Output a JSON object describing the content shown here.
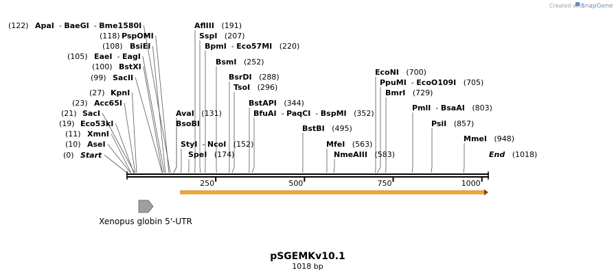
{
  "credit": {
    "prefix": "Created with",
    "brand": "SnapGene"
  },
  "plasmid": {
    "name": "pSGEMKv10.1",
    "length_label": "1018 bp",
    "length": 1018
  },
  "axis": {
    "ticks": [
      250,
      500,
      750,
      1000
    ]
  },
  "feature": {
    "name": "Xenopus globin 5'-UTR",
    "start": 1,
    "end": 42
  },
  "orf": {
    "start": 150,
    "end": 1018,
    "color": "#f0a830"
  },
  "sites": [
    {
      "id": "start",
      "names": [
        "Start"
      ],
      "pos": "(0)",
      "bp": 0,
      "italic": true,
      "pos_first": true
    },
    {
      "id": "asei",
      "names": [
        "AseI"
      ],
      "pos": "(10)",
      "bp": 10,
      "pos_first": true
    },
    {
      "id": "xmni",
      "names": [
        "XmnI"
      ],
      "pos": "(11)",
      "bp": 11,
      "pos_first": true
    },
    {
      "id": "eco53ki",
      "names": [
        "Eco53kI"
      ],
      "pos": "(19)",
      "bp": 19,
      "pos_first": true
    },
    {
      "id": "saci",
      "names": [
        "SacI"
      ],
      "pos": "(21)",
      "bp": 21,
      "pos_first": true
    },
    {
      "id": "acc65i",
      "names": [
        "Acc65I"
      ],
      "pos": "(23)",
      "bp": 23,
      "pos_first": true
    },
    {
      "id": "kpni",
      "names": [
        "KpnI"
      ],
      "pos": "(27)",
      "bp": 27,
      "pos_first": true
    },
    {
      "id": "sacii",
      "names": [
        "SacII"
      ],
      "pos": "(99)",
      "bp": 99,
      "pos_first": true
    },
    {
      "id": "bstxi",
      "names": [
        "BstXI"
      ],
      "pos": "(100)",
      "bp": 100,
      "pos_first": true
    },
    {
      "id": "eaei",
      "names": [
        "EaeI",
        "EagI"
      ],
      "pos": "(105)",
      "bp": 105,
      "pos_first": true
    },
    {
      "id": "bsiei",
      "names": [
        "BsiEI"
      ],
      "pos": "(108)",
      "bp": 108,
      "pos_first": true
    },
    {
      "id": "pspomi",
      "names": [
        "PspOMI"
      ],
      "pos": "(118)",
      "bp": 118,
      "pos_first": true
    },
    {
      "id": "apai",
      "names": [
        "ApaI",
        "BaeGI",
        "Bme1580I"
      ],
      "pos": "(122)",
      "bp": 122,
      "pos_first": true
    },
    {
      "id": "afliii",
      "names": [
        "AflIII"
      ],
      "pos": "(191)",
      "bp": 191
    },
    {
      "id": "sspi",
      "names": [
        "SspI"
      ],
      "pos": "(207)",
      "bp": 207
    },
    {
      "id": "bpmi",
      "names": [
        "BpmI",
        "Eco57MI"
      ],
      "pos": "(220)",
      "bp": 220
    },
    {
      "id": "avai",
      "names": [
        "AvaI"
      ],
      "pos": "(131)",
      "bp": 131
    },
    {
      "id": "bsobi",
      "names": [
        "BsoBI"
      ],
      "pos": "",
      "bp": 131
    },
    {
      "id": "styi",
      "names": [
        "StyI",
        "NcoI"
      ],
      "pos": "(152)",
      "bp": 152
    },
    {
      "id": "spei",
      "names": [
        "SpeI"
      ],
      "pos": "(174)",
      "bp": 174
    },
    {
      "id": "bsmi",
      "names": [
        "BsmI"
      ],
      "pos": "(252)",
      "bp": 252
    },
    {
      "id": "bsrdi",
      "names": [
        "BsrDI"
      ],
      "pos": "(288)",
      "bp": 288
    },
    {
      "id": "tsoi",
      "names": [
        "TsoI"
      ],
      "pos": "(296)",
      "bp": 296
    },
    {
      "id": "bstapi",
      "names": [
        "BstAPI"
      ],
      "pos": "(344)",
      "bp": 344
    },
    {
      "id": "bfuai",
      "names": [
        "BfuAI",
        "PaqCI",
        "BspMI"
      ],
      "pos": "(352)",
      "bp": 352
    },
    {
      "id": "bstbi",
      "names": [
        "BstBI"
      ],
      "pos": "(495)",
      "bp": 495
    },
    {
      "id": "mfei",
      "names": [
        "MfeI"
      ],
      "pos": "(563)",
      "bp": 563
    },
    {
      "id": "nmeaiii",
      "names": [
        "NmeAIII"
      ],
      "pos": "(583)",
      "bp": 583
    },
    {
      "id": "econi",
      "names": [
        "EcoNI"
      ],
      "pos": "(700)",
      "bp": 700
    },
    {
      "id": "ppumi",
      "names": [
        "PpuMI",
        "EcoO109I"
      ],
      "pos": "(705)",
      "bp": 705
    },
    {
      "id": "bmri",
      "names": [
        "BmrI"
      ],
      "pos": "(729)",
      "bp": 729
    },
    {
      "id": "pmli",
      "names": [
        "PmlI",
        "BsaAI"
      ],
      "pos": "(803)",
      "bp": 803
    },
    {
      "id": "psii",
      "names": [
        "PsiI"
      ],
      "pos": "(857)",
      "bp": 857
    },
    {
      "id": "mmei",
      "names": [
        "MmeI"
      ],
      "pos": "(948)",
      "bp": 948
    },
    {
      "id": "end",
      "names": [
        "End"
      ],
      "pos": "(1018)",
      "bp": 1018,
      "italic": true
    }
  ]
}
